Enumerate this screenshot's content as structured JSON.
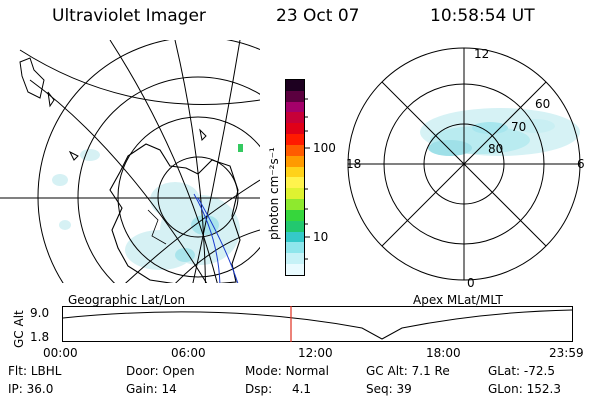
{
  "header": {
    "title": "Ultraviolet Imager",
    "date": "23 Oct 07",
    "time": "10:58:54 UT"
  },
  "colorbar": {
    "unit_label": "photon cm⁻²s⁻¹",
    "ticks": [
      "100",
      "10"
    ],
    "colors": [
      "#e9fbff",
      "#c6f2f7",
      "#8fe6ec",
      "#35c9c9",
      "#22c86f",
      "#36d63c",
      "#8ee92e",
      "#dff231",
      "#fff34d",
      "#ffd21a",
      "#ff9a00",
      "#ff5b00",
      "#ff1a00",
      "#e00018",
      "#c70038",
      "#a4006a",
      "#5b003f",
      "#1d0020"
    ]
  },
  "geo_map": {
    "label": "Geographic Lat/Lon"
  },
  "polar_map": {
    "label": "Apex MLat/MLT",
    "mlt_labels": {
      "top": "12",
      "bottom": "0",
      "left": "18",
      "right": "6"
    },
    "mlat_labels": [
      "60",
      "70",
      "80"
    ]
  },
  "altitude_plot": {
    "ylabel": "GC Alt",
    "yticks": [
      "9.0",
      "1.8"
    ],
    "xticks": [
      "00:00",
      "06:00",
      "12:00",
      "18:00",
      "23:59"
    ],
    "current_time_color": "#e03020"
  },
  "status": {
    "row1": [
      {
        "key": "Flt:",
        "value": "LBHL"
      },
      {
        "key": "Door:",
        "value": "Open"
      },
      {
        "key": "Mode:",
        "value": "Normal"
      },
      {
        "key": "GC Alt:",
        "value": "7.1 Re"
      },
      {
        "key": "GLat:",
        "value": "-72.5"
      }
    ],
    "row2": [
      {
        "key": "IP:",
        "value": "36.0"
      },
      {
        "key": "Gain:",
        "value": "14"
      },
      {
        "key": "Dsp:",
        "value": "4.1"
      },
      {
        "key": "Seq:",
        "value": "39"
      },
      {
        "key": "GLon:",
        "value": "152.3"
      }
    ]
  }
}
